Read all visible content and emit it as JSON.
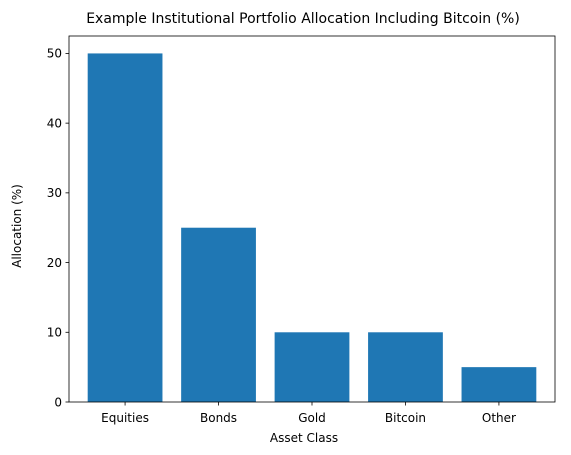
{
  "chart_data": {
    "type": "bar",
    "title": "Example Institutional Portfolio Allocation Including Bitcoin (%)",
    "xlabel": "Asset Class",
    "ylabel": "Allocation (%)",
    "categories": [
      "Equities",
      "Bonds",
      "Gold",
      "Bitcoin",
      "Other"
    ],
    "values": [
      50,
      25,
      10,
      10,
      5
    ],
    "ylim": [
      0,
      52.5
    ],
    "yticks": [
      0,
      10,
      20,
      30,
      40,
      50
    ],
    "grid": false,
    "legend": "none",
    "bar_color": "#1f77b4"
  }
}
